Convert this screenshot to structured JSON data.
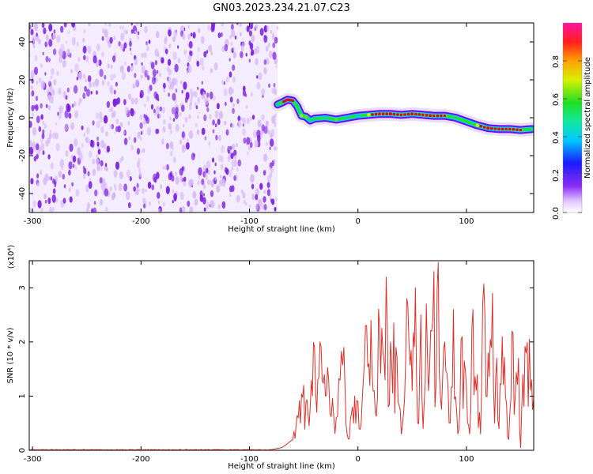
{
  "title": "GN03.2023.234.21.07.C23",
  "colors": {
    "snr_line": "#e0302a",
    "noise_light": "#d7b8f7",
    "noise_dark": "#7a1fe0",
    "track_outer": "#6a0cf0",
    "track_green": "#1ee61e",
    "track_red": "#e4002b"
  },
  "colorbar": {
    "label": "Normalized spectral amplitude",
    "ticks": [
      "0.0",
      "0.2",
      "0.4",
      "0.6",
      "0.8"
    ],
    "tick_values": [
      0.0,
      0.2,
      0.4,
      0.6,
      0.8
    ],
    "range": [
      0,
      1
    ],
    "colormap": "rainbow (purple → blue → cyan → green → yellow → orange → red → magenta)"
  },
  "chart_data": [
    {
      "type": "heatmap",
      "title": "GN03.2023.234.21.07.C23",
      "xlabel": "Height of straight line (km)",
      "ylabel": "Frequency (Hz)",
      "xlim": [
        -303,
        162
      ],
      "ylim": [
        -50,
        50
      ],
      "xticks": [
        -300,
        -200,
        -100,
        0,
        100
      ],
      "yticks": [
        -40,
        -20,
        0,
        20,
        40
      ],
      "noise_region_x": [
        -303,
        -74
      ],
      "signal_track": {
        "x": [
          -74,
          -70,
          -65,
          -60,
          -56,
          -52,
          -48,
          -44,
          -40,
          -30,
          -20,
          -10,
          0,
          10,
          20,
          30,
          40,
          50,
          60,
          70,
          80,
          90,
          100,
          110,
          120,
          130,
          140,
          150,
          160
        ],
        "y": [
          7,
          8,
          9.5,
          9,
          6,
          1,
          0.5,
          -1.5,
          -0.5,
          0,
          -1,
          0,
          1,
          1.5,
          2,
          2,
          1.5,
          2,
          1.5,
          1,
          1,
          0,
          -2,
          -4,
          -5.5,
          -6,
          -6,
          -6.5,
          -6
        ],
        "amplitude": [
          0.55,
          0.6,
          0.8,
          0.65,
          0.6,
          0.7,
          0.65,
          0.5,
          0.55,
          0.5,
          0.65,
          0.5,
          0.45,
          0.75,
          0.9,
          0.95,
          0.85,
          0.9,
          0.8,
          0.7,
          0.75,
          0.55,
          0.6,
          0.75,
          0.95,
          0.9,
          0.85,
          0.7,
          0.55
        ]
      }
    },
    {
      "type": "line",
      "xlabel": "Height of straight line (km)",
      "ylabel": "SNR (10 * v/v)",
      "y_multiplier": "(x10⁴)",
      "xlim": [
        -303,
        162
      ],
      "ylim": [
        0,
        3.5
      ],
      "xticks": [
        -300,
        -200,
        -100,
        0,
        100
      ],
      "yticks": [
        0,
        1,
        2,
        3
      ],
      "series": [
        {
          "x": [
            -303,
            -250,
            -200,
            -150,
            -100,
            -80,
            -70,
            -60,
            -55,
            -50,
            -45,
            -40,
            -38,
            -35,
            -30,
            -27,
            -20,
            -13,
            -10,
            -5,
            0,
            3,
            8,
            10,
            12,
            15,
            20,
            25,
            26,
            28,
            30,
            35,
            40,
            45,
            50,
            53,
            55,
            58,
            60,
            63,
            65,
            68,
            70,
            72,
            74,
            76,
            80,
            85,
            88,
            92,
            96,
            100,
            103,
            106,
            110,
            113,
            116,
            118,
            120,
            124,
            126,
            128,
            130,
            133,
            136,
            139,
            142,
            145,
            148,
            150,
            152,
            155,
            158,
            160,
            162
          ],
          "y": [
            0.01,
            0.01,
            0.01,
            0.01,
            0.01,
            0.01,
            0.05,
            0.2,
            0.6,
            1.2,
            0.45,
            1.9,
            0.7,
            2.0,
            1.0,
            1.3,
            0.6,
            1.9,
            0.3,
            0.8,
            0.9,
            0.5,
            2.3,
            1.6,
            2.4,
            1.1,
            2.25,
            1.3,
            3.2,
            0.8,
            2.0,
            1.9,
            0.3,
            2.8,
            1.1,
            3.0,
            0.5,
            2.5,
            0.4,
            2.7,
            1.1,
            2.2,
            3.3,
            1.2,
            3.47,
            1.0,
            2.0,
            0.5,
            2.6,
            0.3,
            2.1,
            1.2,
            0.3,
            2.6,
            1.4,
            0.3,
            3.07,
            1.0,
            1.8,
            2.9,
            0.5,
            1.7,
            0.4,
            2.1,
            1.0,
            0.2,
            2.2,
            1.0,
            1.7,
            0.05,
            1.4,
            1.8,
            2.05,
            1.3,
            0.95
          ]
        }
      ]
    }
  ]
}
